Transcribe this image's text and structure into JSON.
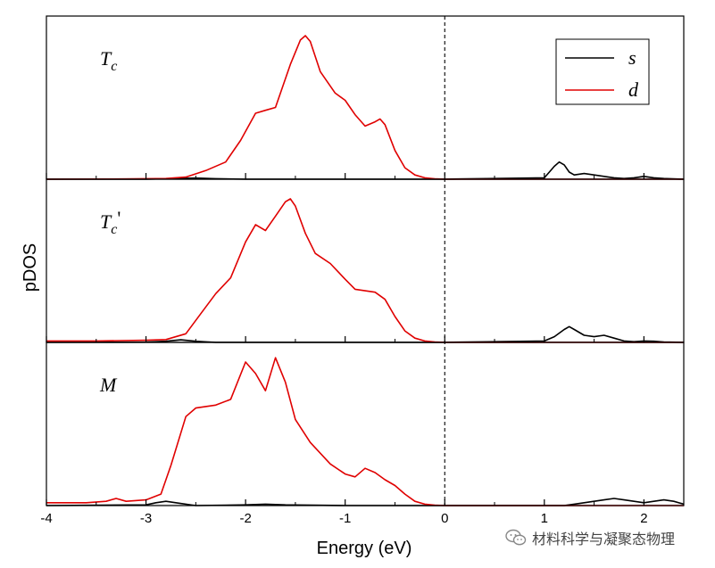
{
  "chart_data": {
    "type": "line",
    "xlabel": "Energy (eV)",
    "ylabel": "pDOS",
    "xlim": [
      -4,
      2.4
    ],
    "x_ticks": [
      -4,
      -3,
      -2,
      -1,
      0,
      1,
      2
    ],
    "x_tick_labels": [
      "-4",
      "-3",
      "-2",
      "-1",
      "0",
      "1",
      "2"
    ],
    "fermi_level": 0,
    "legend": {
      "position": "top-right",
      "entries": [
        {
          "name": "s",
          "color": "#000000"
        },
        {
          "name": "d",
          "color": "#e00000"
        }
      ]
    },
    "panels": [
      {
        "label": "T",
        "label_sub": "c",
        "label_prime": "",
        "ylim": [
          0,
          1.05
        ],
        "series": [
          {
            "name": "s",
            "color": "#000000",
            "x": [
              -4,
              -3,
              -2.7,
              -2.5,
              -2.3,
              -2,
              0,
              1,
              1.05,
              1.1,
              1.15,
              1.2,
              1.25,
              1.3,
              1.4,
              1.5,
              1.6,
              1.7,
              1.8,
              1.9,
              2,
              2.1,
              2.2,
              2.4
            ],
            "y": [
              0,
              0,
              0.005,
              0.008,
              0.004,
              0,
              0,
              0.01,
              0.05,
              0.09,
              0.12,
              0.1,
              0.05,
              0.03,
              0.04,
              0.03,
              0.02,
              0.01,
              0.005,
              0.01,
              0.02,
              0.01,
              0.005,
              0
            ]
          },
          {
            "name": "d",
            "color": "#e00000",
            "x": [
              -4,
              -3.2,
              -2.8,
              -2.6,
              -2.4,
              -2.2,
              -2.05,
              -1.9,
              -1.8,
              -1.7,
              -1.55,
              -1.45,
              -1.4,
              -1.35,
              -1.25,
              -1.1,
              -1.0,
              -0.9,
              -0.8,
              -0.7,
              -0.65,
              -0.6,
              -0.5,
              -0.4,
              -0.3,
              -0.2,
              -0.1,
              0,
              0.5,
              1,
              2.4
            ],
            "y": [
              0,
              0.002,
              0.005,
              0.015,
              0.06,
              0.12,
              0.27,
              0.46,
              0.48,
              0.5,
              0.8,
              0.97,
              1.0,
              0.96,
              0.75,
              0.6,
              0.55,
              0.45,
              0.37,
              0.4,
              0.42,
              0.38,
              0.2,
              0.08,
              0.03,
              0.01,
              0.003,
              0,
              0,
              0,
              0
            ]
          }
        ]
      },
      {
        "label": "T",
        "label_sub": "c",
        "label_prime": "'",
        "ylim": [
          0,
          1.05
        ],
        "series": [
          {
            "name": "s",
            "color": "#000000",
            "x": [
              -4,
              -3,
              -2.8,
              -2.65,
              -2.5,
              -2.3,
              0,
              1,
              1.1,
              1.2,
              1.25,
              1.3,
              1.4,
              1.5,
              1.6,
              1.7,
              1.8,
              1.9,
              2,
              2.1,
              2.2,
              2.4
            ],
            "y": [
              0,
              0.002,
              0.008,
              0.018,
              0.008,
              0,
              0,
              0.01,
              0.04,
              0.09,
              0.11,
              0.09,
              0.05,
              0.04,
              0.05,
              0.03,
              0.01,
              0.005,
              0.01,
              0.008,
              0.003,
              0
            ]
          },
          {
            "name": "d",
            "color": "#e00000",
            "x": [
              -4,
              -3.5,
              -3.0,
              -2.8,
              -2.6,
              -2.45,
              -2.3,
              -2.15,
              -2.0,
              -1.9,
              -1.8,
              -1.7,
              -1.6,
              -1.55,
              -1.5,
              -1.4,
              -1.3,
              -1.15,
              -1.0,
              -0.9,
              -0.8,
              -0.7,
              -0.6,
              -0.5,
              -0.4,
              -0.3,
              -0.2,
              -0.1,
              0,
              2.4
            ],
            "y": [
              0.01,
              0.01,
              0.015,
              0.02,
              0.06,
              0.2,
              0.34,
              0.45,
              0.7,
              0.82,
              0.78,
              0.88,
              0.98,
              1.0,
              0.95,
              0.76,
              0.62,
              0.55,
              0.44,
              0.37,
              0.36,
              0.35,
              0.3,
              0.18,
              0.08,
              0.03,
              0.01,
              0.003,
              0,
              0
            ]
          }
        ]
      },
      {
        "label": "M",
        "label_sub": "",
        "label_prime": "",
        "ylim": [
          0,
          1.05
        ],
        "series": [
          {
            "name": "s",
            "color": "#000000",
            "x": [
              -4,
              -3.0,
              -2.9,
              -2.8,
              -2.7,
              -2.5,
              -2.0,
              -1.8,
              -1.6,
              -1.0,
              0,
              1.2,
              1.3,
              1.4,
              1.5,
              1.6,
              1.7,
              1.8,
              1.9,
              2,
              2.1,
              2.2,
              2.3,
              2.4
            ],
            "y": [
              0,
              0.005,
              0.02,
              0.03,
              0.02,
              0,
              0.005,
              0.01,
              0.005,
              0,
              0,
              0,
              0.01,
              0.02,
              0.03,
              0.04,
              0.05,
              0.04,
              0.03,
              0.02,
              0.03,
              0.04,
              0.03,
              0.01
            ]
          },
          {
            "name": "d",
            "color": "#e00000",
            "x": [
              -4,
              -3.6,
              -3.4,
              -3.3,
              -3.2,
              -3.0,
              -2.85,
              -2.75,
              -2.6,
              -2.5,
              -2.3,
              -2.15,
              -2.0,
              -1.9,
              -1.8,
              -1.7,
              -1.6,
              -1.5,
              -1.35,
              -1.15,
              -1.0,
              -0.9,
              -0.8,
              -0.7,
              -0.6,
              -0.5,
              -0.4,
              -0.3,
              -0.2,
              -0.1,
              0,
              2.4
            ],
            "y": [
              0.02,
              0.02,
              0.03,
              0.05,
              0.03,
              0.04,
              0.08,
              0.28,
              0.62,
              0.68,
              0.7,
              0.74,
              1.0,
              0.92,
              0.8,
              1.03,
              0.86,
              0.6,
              0.44,
              0.29,
              0.22,
              0.2,
              0.26,
              0.23,
              0.18,
              0.14,
              0.08,
              0.03,
              0.01,
              0.003,
              0,
              0
            ]
          }
        ]
      }
    ]
  },
  "watermark": {
    "text": "材料科学与凝聚态物理",
    "icon": "wechat-icon"
  }
}
